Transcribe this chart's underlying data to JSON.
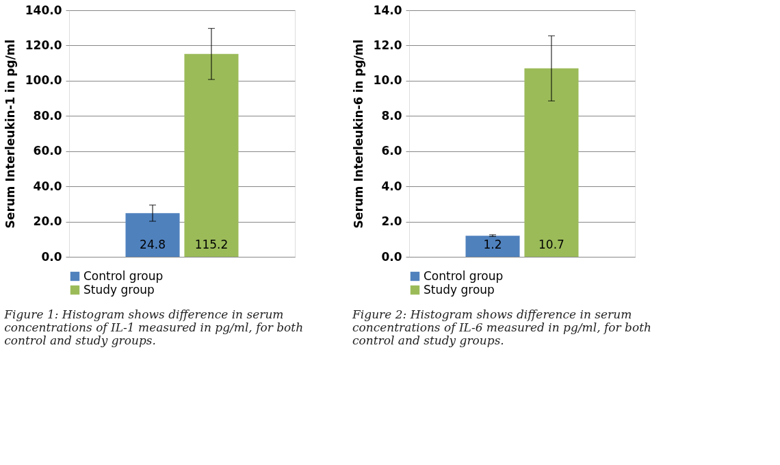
{
  "chart_data": [
    {
      "type": "bar",
      "categories": [
        null
      ],
      "ylabel": "Serum Interleukin-1 in pg/ml",
      "ylim": [
        0,
        140
      ],
      "yticks": [
        {
          "value": 0,
          "label": "0.0"
        },
        {
          "value": 20,
          "label": "20.0"
        },
        {
          "value": 40,
          "label": "40.0"
        },
        {
          "value": 60,
          "label": "60.0"
        },
        {
          "value": 80,
          "label": "80.0"
        },
        {
          "value": 100,
          "label": "100.0"
        },
        {
          "value": 120,
          "label": "120.0"
        },
        {
          "value": 140,
          "label": "140.0"
        }
      ],
      "grid": "y",
      "legend": "bottom",
      "data_labels": true,
      "series": [
        {
          "name": "Control group",
          "color": "#4f81bd",
          "values": [
            24.8
          ],
          "errors": [
            4.6
          ]
        },
        {
          "name": "Study group",
          "color": "#9bbb59",
          "values": [
            115.2
          ],
          "errors": [
            14.5
          ]
        }
      ],
      "annotations": [
        "Figure 1: Histogram shows difference in serum concentrations of IL-1 measured in pg/ml, for both control and study groups."
      ]
    },
    {
      "type": "bar",
      "categories": [
        null
      ],
      "ylabel": "Serum Interleukin-6 in pg/ml",
      "ylim": [
        0,
        14
      ],
      "yticks": [
        {
          "value": 0,
          "label": "0.0"
        },
        {
          "value": 2,
          "label": "2.0"
        },
        {
          "value": 4,
          "label": "4.0"
        },
        {
          "value": 6,
          "label": "6.0"
        },
        {
          "value": 8,
          "label": "8.0"
        },
        {
          "value": 10,
          "label": "10.0"
        },
        {
          "value": 12,
          "label": "12.0"
        },
        {
          "value": 14,
          "label": "14.0"
        }
      ],
      "grid": "y",
      "legend": "bottom",
      "data_labels": true,
      "series": [
        {
          "name": "Control group",
          "color": "#4f81bd",
          "values": [
            1.2
          ],
          "errors": [
            0.05
          ]
        },
        {
          "name": "Study group",
          "color": "#9bbb59",
          "values": [
            10.7
          ],
          "errors": [
            1.85
          ]
        }
      ],
      "annotations": [
        "Figure 2: Histogram shows difference in serum concentrations of IL-6 measured in pg/ml, for both control and study groups."
      ]
    }
  ]
}
